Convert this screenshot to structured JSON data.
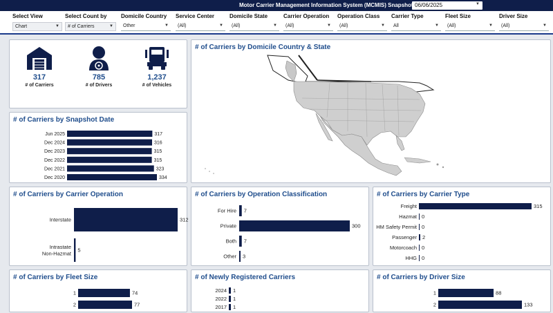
{
  "header": {
    "title": "Motor Carrier Management Information System (MCMIS) Snapshot Date:",
    "snapshot_date": "06/06/2025"
  },
  "filters": [
    {
      "label": "Select View",
      "value": "Chart"
    },
    {
      "label": "Select Count by",
      "value": "# of Carriers"
    },
    {
      "label": "Domicile Country",
      "value": "Other"
    },
    {
      "label": "Service Center",
      "value": "(All)"
    },
    {
      "label": "Domicile State",
      "value": "(All)"
    },
    {
      "label": "Carrier Operation",
      "value": "(All)"
    },
    {
      "label": "Operation Class",
      "value": "(All)"
    },
    {
      "label": "Carrier Type",
      "value": "All"
    },
    {
      "label": "Fleet Size",
      "value": "(All)"
    },
    {
      "label": "Driver Size",
      "value": "(All)"
    }
  ],
  "kpis": [
    {
      "value": "317",
      "label": "# of Carriers",
      "icon": "building-icon"
    },
    {
      "value": "785",
      "label": "# of Drivers",
      "icon": "driver-icon"
    },
    {
      "value": "1,237",
      "label": "# of Vehicles",
      "icon": "truck-icon"
    }
  ],
  "map": {
    "title": "# of Carriers by Domicile Country & State"
  },
  "colors": {
    "bar": "#0f1e4a",
    "title": "#1f4d8c",
    "header": "#0f1e4a",
    "accent": "#1a3a8a"
  },
  "chart_data": [
    {
      "id": "snapshot",
      "type": "bar",
      "orientation": "horizontal",
      "title": "# of Carriers by Snapshot Date",
      "categories": [
        "Jun 2025",
        "Dec 2024",
        "Dec 2023",
        "Dec 2022",
        "Dec 2021",
        "Dec 2020"
      ],
      "values": [
        317,
        316,
        315,
        315,
        323,
        334
      ]
    },
    {
      "id": "operation",
      "type": "bar",
      "orientation": "horizontal",
      "title": "# of Carriers by Carrier Operation",
      "categories": [
        "Interstate",
        "Intrastate Non-Hazmat"
      ],
      "values": [
        312,
        5
      ]
    },
    {
      "id": "opclass",
      "type": "bar",
      "orientation": "horizontal",
      "title": "# of Carriers by Operation Classification",
      "categories": [
        "For Hire",
        "Private",
        "Both",
        "Other"
      ],
      "values": [
        7,
        300,
        7,
        3
      ]
    },
    {
      "id": "carriertype",
      "type": "bar",
      "orientation": "horizontal",
      "title": "# of Carriers by Carrier Type",
      "categories": [
        "Freight",
        "Hazmat",
        "HM Safety Permit",
        "Passenger",
        "Motorcoach",
        "HHG"
      ],
      "values": [
        315,
        0,
        0,
        2,
        0,
        0
      ]
    },
    {
      "id": "fleet",
      "type": "bar",
      "orientation": "horizontal",
      "title": "# of Carriers by Fleet Size",
      "categories": [
        "1",
        "2"
      ],
      "values": [
        74,
        77
      ]
    },
    {
      "id": "newreg",
      "type": "bar",
      "orientation": "horizontal",
      "title": "# of Newly Registered Carriers",
      "categories": [
        "2024",
        "2022",
        "2017"
      ],
      "values": [
        1,
        1,
        1
      ]
    },
    {
      "id": "driver",
      "type": "bar",
      "orientation": "horizontal",
      "title": "# of Carriers by Driver Size",
      "categories": [
        "1",
        "2"
      ],
      "values": [
        88,
        133
      ]
    }
  ]
}
